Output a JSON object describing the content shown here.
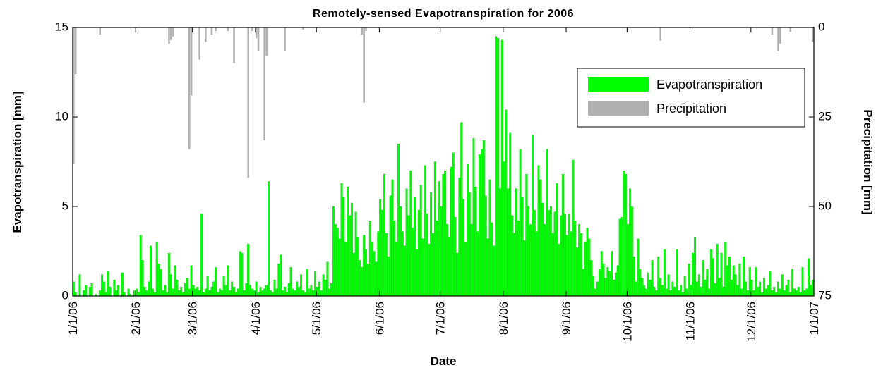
{
  "chart_data": {
    "type": "bar",
    "title": "Remotely-sensed Evapotranspiration for 2006",
    "x_label": "Date",
    "y_label": "Evapotranspiration [mm]",
    "y2_label": "Precipitation [mm]",
    "legend": "upper right",
    "xlim": [
      0,
      365
    ],
    "xticks": [
      {
        "value": 0,
        "label": "1/1/06"
      },
      {
        "value": 31,
        "label": "2/1/06"
      },
      {
        "value": 59,
        "label": "3/1/06"
      },
      {
        "value": 90,
        "label": "4/1/06"
      },
      {
        "value": 120,
        "label": "5/1/06"
      },
      {
        "value": 151,
        "label": "6/1/06"
      },
      {
        "value": 181,
        "label": "7/1/06"
      },
      {
        "value": 212,
        "label": "8/1/06"
      },
      {
        "value": 243,
        "label": "9/1/06"
      },
      {
        "value": 273,
        "label": "10/1/06"
      },
      {
        "value": 304,
        "label": "11/1/06"
      },
      {
        "value": 334,
        "label": "12/1/06"
      },
      {
        "value": 365,
        "label": "1/1/07"
      }
    ],
    "ylim": [
      0,
      15
    ],
    "yticks": [
      0,
      5,
      10,
      15
    ],
    "y2lim": [
      75,
      0
    ],
    "y2ticks": [
      0,
      25,
      50,
      75
    ],
    "x": [
      0,
      1,
      2,
      3,
      4,
      5,
      6,
      7,
      8,
      9,
      10,
      11,
      12,
      13,
      14,
      15,
      16,
      17,
      18,
      19,
      20,
      21,
      22,
      23,
      24,
      25,
      26,
      27,
      28,
      29,
      30,
      31,
      32,
      33,
      34,
      35,
      36,
      37,
      38,
      39,
      40,
      41,
      42,
      43,
      44,
      45,
      46,
      47,
      48,
      49,
      50,
      51,
      52,
      53,
      54,
      55,
      56,
      57,
      58,
      59,
      60,
      61,
      62,
      63,
      64,
      65,
      66,
      67,
      68,
      69,
      70,
      71,
      72,
      73,
      74,
      75,
      76,
      77,
      78,
      79,
      80,
      81,
      82,
      83,
      84,
      85,
      86,
      87,
      88,
      89,
      90,
      91,
      92,
      93,
      94,
      95,
      96,
      97,
      98,
      99,
      100,
      101,
      102,
      103,
      104,
      105,
      106,
      107,
      108,
      109,
      110,
      111,
      112,
      113,
      114,
      115,
      116,
      117,
      118,
      119,
      120,
      121,
      122,
      123,
      124,
      125,
      126,
      127,
      128,
      129,
      130,
      131,
      132,
      133,
      134,
      135,
      136,
      137,
      138,
      139,
      140,
      141,
      142,
      143,
      144,
      145,
      146,
      147,
      148,
      149,
      150,
      151,
      152,
      153,
      154,
      155,
      156,
      157,
      158,
      159,
      160,
      161,
      162,
      163,
      164,
      165,
      166,
      167,
      168,
      169,
      170,
      171,
      172,
      173,
      174,
      175,
      176,
      177,
      178,
      179,
      180,
      181,
      182,
      183,
      184,
      185,
      186,
      187,
      188,
      189,
      190,
      191,
      192,
      193,
      194,
      195,
      196,
      197,
      198,
      199,
      200,
      201,
      202,
      203,
      204,
      205,
      206,
      207,
      208,
      209,
      210,
      211,
      212,
      213,
      214,
      215,
      216,
      217,
      218,
      219,
      220,
      221,
      222,
      223,
      224,
      225,
      226,
      227,
      228,
      229,
      230,
      231,
      232,
      233,
      234,
      235,
      236,
      237,
      238,
      239,
      240,
      241,
      242,
      243,
      244,
      245,
      246,
      247,
      248,
      249,
      250,
      251,
      252,
      253,
      254,
      255,
      256,
      257,
      258,
      259,
      260,
      261,
      262,
      263,
      264,
      265,
      266,
      267,
      268,
      269,
      270,
      271,
      272,
      273,
      274,
      275,
      276,
      277,
      278,
      279,
      280,
      281,
      282,
      283,
      284,
      285,
      286,
      287,
      288,
      289,
      290,
      291,
      292,
      293,
      294,
      295,
      296,
      297,
      298,
      299,
      300,
      301,
      302,
      303,
      304,
      305,
      306,
      307,
      308,
      309,
      310,
      311,
      312,
      313,
      314,
      315,
      316,
      317,
      318,
      319,
      320,
      321,
      322,
      323,
      324,
      325,
      326,
      327,
      328,
      329,
      330,
      331,
      332,
      333,
      334,
      335,
      336,
      337,
      338,
      339,
      340,
      341,
      342,
      343,
      344,
      345,
      346,
      347,
      348,
      349,
      350,
      351,
      352,
      353,
      354,
      355,
      356,
      357,
      358,
      359,
      360,
      361,
      362,
      363,
      364
    ],
    "series": [
      {
        "name": "Evapotranspiration",
        "color": "#00ff00",
        "values": [
          0.8,
          0.2,
          0,
          1.2,
          0,
          0.3,
          0.6,
          0,
          0.5,
          0.7,
          0,
          0.1,
          0,
          0.3,
          1.2,
          0.8,
          0.2,
          1.4,
          0.5,
          0,
          0.9,
          0.3,
          0.6,
          0,
          1.3,
          0.2,
          0,
          0.4,
          0.1,
          0,
          0.3,
          0.4,
          0.2,
          3.4,
          2.0,
          0.5,
          0.3,
          0.8,
          2.8,
          0.4,
          0.2,
          3.0,
          1.8,
          1.5,
          0.3,
          0.6,
          0.2,
          2.4,
          1.2,
          0.4,
          1.7,
          0.9,
          0.3,
          0.5,
          0.2,
          0.7,
          1.0,
          0.4,
          1.7,
          0.6,
          0.4,
          0.5,
          0.3,
          4.6,
          0.2,
          0.4,
          1.1,
          0.3,
          0.5,
          0.8,
          1.6,
          0.2,
          0.4,
          0.3,
          1.1,
          0.6,
          1.7,
          0.3,
          0.8,
          0.5,
          0.2,
          0.4,
          2.5,
          2.4,
          0.3,
          0.7,
          2.9,
          0.6,
          0.4,
          0.3,
          0.8,
          0.2,
          0.5,
          0.3,
          0.4,
          0.6,
          6.4,
          0.3,
          0.2,
          0.9,
          0.4,
          1.8,
          2.3,
          0.3,
          0.5,
          0.2,
          0.7,
          1.6,
          0.4,
          0.3,
          0.8,
          0.5,
          1.2,
          0.3,
          0.2,
          1.5,
          0.4,
          0.6,
          0.3,
          1.4,
          0.5,
          0.8,
          0.3,
          1.2,
          0.9,
          1.9,
          0.4,
          0.7,
          5.0,
          4.0,
          3.8,
          3.2,
          6.3,
          5.5,
          3.0,
          6.1,
          4.5,
          5.2,
          2.4,
          4.7,
          3.3,
          2.0,
          1.6,
          3.4,
          2.6,
          1.8,
          4.2,
          3.0,
          2.5,
          1.9,
          3.6,
          5.4,
          4.8,
          6.8,
          3.5,
          2.2,
          5.6,
          6.5,
          4.2,
          3.0,
          8.5,
          5.0,
          3.6,
          2.8,
          6.0,
          4.5,
          7.0,
          3.8,
          5.5,
          2.6,
          4.8,
          6.2,
          3.2,
          7.3,
          4.6,
          2.9,
          5.8,
          3.5,
          7.5,
          4.2,
          6.4,
          5.0,
          6.8,
          7.0,
          4.0,
          3.3,
          7.2,
          8.0,
          4.4,
          2.4,
          6.6,
          9.7,
          5.4,
          3.0,
          7.4,
          5.8,
          4.0,
          8.8,
          6.1,
          3.6,
          7.9,
          8.2,
          8.7,
          5.6,
          3.2,
          6.5,
          4.1,
          2.8,
          14.5,
          14.4,
          6.0,
          14.3,
          7.5,
          10.4,
          6.0,
          9.1,
          4.5,
          3.5,
          6.0,
          4.2,
          8.2,
          5.5,
          3.1,
          6.8,
          5.0,
          4.0,
          9.0,
          4.8,
          3.6,
          7.3,
          6.5,
          5.2,
          4.0,
          8.2,
          4.8,
          5.0,
          3.5,
          4.7,
          6.3,
          2.9,
          4.5,
          6.8,
          4.6,
          3.4,
          4.6,
          3.6,
          7.6,
          4.2,
          2.7,
          4.0,
          3.5,
          1.5,
          3.0,
          3.8,
          3.2,
          2.0,
          1.1,
          0.4,
          0.8,
          1.5,
          2.5,
          1.8,
          1.0,
          1.6,
          1.4,
          2.5,
          0.9,
          1.3,
          1.7,
          4.3,
          4.4,
          7.0,
          6.8,
          4.0,
          6.0,
          5.0,
          2.2,
          0.8,
          3.2,
          1.5,
          1.0,
          0.6,
          0.4,
          1.3,
          0.9,
          2.0,
          0.5,
          0.3,
          2.2,
          1.0,
          0.6,
          2.6,
          0.4,
          1.2,
          0.3,
          0.8,
          0.5,
          2.6,
          0.3,
          0.6,
          0.2,
          1.1,
          0.4,
          1.8,
          0.6,
          2.4,
          3.3,
          0.8,
          1.2,
          0.5,
          2.0,
          0.9,
          1.5,
          0.4,
          2.6,
          2.1,
          0.7,
          2.9,
          1.0,
          2.4,
          0.5,
          3.0,
          1.7,
          2.2,
          0.9,
          1.7,
          1.2,
          0.6,
          1.8,
          0.4,
          2.2,
          0.8,
          0.3,
          1.6,
          0.9,
          0.3,
          1.6,
          0.5,
          0.8,
          0.2,
          1.0,
          0.4,
          0.6,
          1.4,
          0.3,
          0.5,
          0.2,
          0.8,
          0.4,
          1.2,
          0.3,
          0.6,
          0.9,
          0.2,
          1.5,
          0.4,
          0.3,
          0.5,
          0.2,
          1.6,
          0.3,
          0.4,
          2.1,
          0.6,
          0.9
        ]
      },
      {
        "name": "Precipitation",
        "color": "#b0b0b0",
        "axis": "y2",
        "values": [
          38,
          13,
          0,
          0,
          0,
          0,
          0,
          0,
          0,
          0,
          0,
          0,
          0,
          2,
          0,
          0,
          0,
          0,
          0,
          0,
          0,
          0,
          0,
          0,
          0,
          0,
          0,
          0,
          0,
          0,
          0,
          0,
          0,
          0,
          0,
          0,
          0,
          0,
          0,
          0,
          0,
          0,
          0,
          0,
          0,
          0,
          0,
          4.5,
          3.5,
          2.5,
          0,
          0,
          0,
          0,
          0,
          0,
          0,
          34,
          19,
          0,
          0,
          0,
          9,
          0,
          0,
          4,
          0,
          0,
          2,
          0,
          1,
          0,
          0,
          0,
          0,
          0,
          1,
          0,
          0,
          10,
          0,
          0,
          0,
          0,
          0,
          0,
          42,
          0,
          1,
          0,
          3,
          6.5,
          0,
          0,
          31.5,
          8,
          0,
          0,
          0,
          0,
          0,
          0,
          0,
          0,
          6.5,
          0,
          0,
          0,
          0,
          0,
          0,
          0,
          0,
          0.6,
          0,
          0,
          0,
          0,
          0,
          0,
          0,
          0,
          0,
          0,
          0,
          0,
          0,
          0,
          0,
          0,
          0,
          0,
          0,
          0,
          0,
          0,
          0,
          0,
          0,
          0,
          0,
          0,
          2,
          21,
          1,
          0,
          0,
          0,
          0,
          0,
          0,
          0,
          0,
          0,
          0,
          0,
          0,
          0,
          0,
          0,
          0,
          0,
          0,
          0,
          0,
          0,
          0,
          0,
          0,
          0,
          0,
          0,
          0,
          0,
          0,
          0,
          0,
          0,
          0,
          0,
          0,
          0,
          0,
          0,
          0,
          0,
          0,
          0,
          0,
          0,
          0,
          0,
          0,
          0,
          0,
          0,
          0,
          0,
          0,
          0,
          0,
          0,
          0,
          0,
          0,
          0,
          0,
          0,
          0,
          0,
          0,
          0,
          0,
          0,
          0,
          0,
          0,
          0,
          0,
          0,
          0,
          0,
          0,
          0,
          0,
          0,
          0,
          0,
          0,
          0,
          0,
          0,
          0,
          0,
          0,
          0,
          0,
          0,
          0,
          0,
          0,
          0,
          0,
          0,
          0,
          0,
          0,
          0,
          0,
          0,
          0,
          0,
          0,
          0,
          0,
          0,
          0,
          0,
          0,
          0,
          0,
          0,
          0,
          0,
          0,
          0,
          0,
          0,
          0,
          0,
          0,
          0,
          0,
          0,
          0,
          0,
          0,
          0,
          0,
          0,
          0,
          0,
          0,
          0,
          0,
          0,
          0,
          0,
          0,
          3.7,
          0,
          0,
          0,
          0,
          0,
          0,
          0,
          0,
          0,
          0,
          0,
          0,
          0,
          0,
          0,
          0,
          0,
          0,
          0,
          0,
          0,
          0,
          0,
          0,
          0,
          0,
          0,
          0,
          0,
          0,
          0,
          0,
          0,
          0,
          0,
          0,
          0,
          0,
          0,
          0,
          0,
          0,
          0,
          0,
          0,
          0,
          0,
          0,
          0,
          0,
          0,
          0,
          0,
          0,
          2,
          0,
          0,
          6.7,
          4.5,
          0,
          0,
          0,
          0,
          1.2,
          0,
          0,
          0,
          0,
          0,
          0,
          0,
          0,
          0,
          0,
          4
        ]
      }
    ]
  }
}
